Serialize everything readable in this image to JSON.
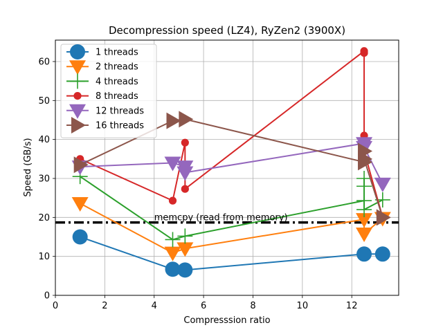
{
  "chart_data": {
    "type": "line",
    "title": "Decompression speed (LZ4), RyZen2 (3900X)",
    "xlabel": "Compresssion ratio",
    "ylabel": "Speed (GB/s)",
    "xlim": [
      0,
      13.9
    ],
    "ylim": [
      0,
      65.5
    ],
    "xticks": [
      0,
      2,
      4,
      6,
      8,
      10,
      12
    ],
    "yticks": [
      0,
      10,
      20,
      30,
      40,
      50,
      60
    ],
    "grid": true,
    "legend": "top-left",
    "reference_line": {
      "y": 18.7,
      "label": "memcpy (read from memory)",
      "color": "#000000",
      "label_x": 4.0
    },
    "series": [
      {
        "name": "1 threads",
        "color": "#1f77b4",
        "marker": "circle",
        "x": [
          1.0,
          4.75,
          5.25,
          12.5,
          13.25
        ],
        "y": [
          15.0,
          6.7,
          6.5,
          10.6,
          10.6
        ]
      },
      {
        "name": "2 threads",
        "color": "#ff7f0e",
        "marker": "triangle-down",
        "x": [
          1.0,
          4.75,
          5.25,
          12.5,
          12.5,
          13.25
        ],
        "y": [
          23.6,
          10.9,
          12.0,
          19.5,
          15.8,
          19.8
        ]
      },
      {
        "name": "4 threads",
        "color": "#2ca02c",
        "marker": "plus",
        "x": [
          1.0,
          4.75,
          5.25,
          12.5,
          12.5,
          12.5,
          12.5,
          13.25
        ],
        "y": [
          30.5,
          14.3,
          15.2,
          24.3,
          30.0,
          28.0,
          22.0,
          24.5
        ]
      },
      {
        "name": "8 threads",
        "color": "#d62728",
        "marker": "dot",
        "x": [
          1.0,
          4.75,
          5.25,
          5.25,
          12.5,
          12.5,
          12.5,
          12.5,
          13.25
        ],
        "y": [
          35.0,
          24.3,
          39.2,
          27.3,
          62.7,
          62.2,
          41.0,
          37.0,
          20.0
        ]
      },
      {
        "name": "12 threads",
        "color": "#9467bd",
        "marker": "triangle-down",
        "x": [
          1.0,
          4.75,
          5.25,
          5.25,
          12.5,
          12.5,
          13.25
        ],
        "y": [
          33.0,
          34.0,
          33.0,
          31.5,
          39.0,
          38.0,
          28.6
        ]
      },
      {
        "name": "16 threads",
        "color": "#8c564b",
        "marker": "triangle-right",
        "x": [
          1.0,
          4.75,
          5.25,
          12.5,
          12.5,
          12.5,
          13.25
        ],
        "y": [
          33.5,
          44.8,
          45.2,
          34.2,
          37.0,
          35.0,
          20.0
        ]
      }
    ]
  }
}
